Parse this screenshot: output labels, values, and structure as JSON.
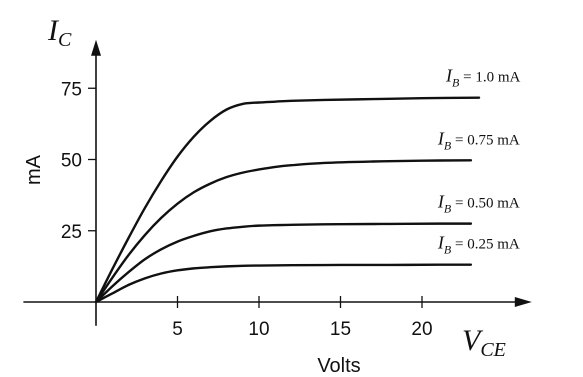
{
  "chart_data": {
    "type": "line",
    "y_title": {
      "main": "I",
      "sub": "C"
    },
    "x_title": {
      "main": "V",
      "sub": "CE"
    },
    "ylabel": "mA",
    "xlabel": "Volts",
    "xlim": [
      -2,
      26
    ],
    "ylim": [
      -2,
      92
    ],
    "x_ticks": [
      5,
      10,
      15,
      20
    ],
    "y_ticks": [
      25,
      50,
      75
    ],
    "grid": false,
    "series": [
      {
        "name": "I_B = 1.0 mA",
        "label": {
          "prefix": "I",
          "sub": "B",
          "value": " = 1.0 mA"
        },
        "x": [
          0,
          1,
          2,
          3,
          4,
          5,
          6,
          7,
          8,
          9,
          10,
          11,
          12,
          14,
          17,
          20,
          23.5
        ],
        "y": [
          0,
          11.5,
          22.5,
          33,
          42.5,
          51,
          58,
          63.5,
          67.5,
          69.5,
          70,
          70.3,
          70.6,
          70.9,
          71.2,
          71.5,
          71.7
        ]
      },
      {
        "name": "I_B = 0.75 mA",
        "label": {
          "prefix": "I",
          "sub": "B",
          "value": " = 0.75 mA"
        },
        "x": [
          0,
          1,
          2,
          3,
          4,
          5,
          6,
          7,
          8,
          9,
          10,
          11,
          12,
          14,
          17,
          20,
          23
        ],
        "y": [
          0,
          8.5,
          16.5,
          23.5,
          29.5,
          34.5,
          38.5,
          41.5,
          43.8,
          45.4,
          46.5,
          47.4,
          48,
          48.8,
          49.3,
          49.6,
          49.7
        ]
      },
      {
        "name": "I_B = 0.50 mA",
        "label": {
          "prefix": "I",
          "sub": "B",
          "value": " = 0.50 mA"
        },
        "x": [
          0,
          1,
          2,
          3,
          4,
          5,
          6,
          7,
          8,
          9,
          10,
          12,
          15,
          18,
          21,
          23
        ],
        "y": [
          0,
          5.5,
          10.5,
          15,
          18.5,
          21.2,
          23.2,
          24.8,
          25.8,
          26.4,
          26.8,
          27.1,
          27.3,
          27.4,
          27.5,
          27.5
        ]
      },
      {
        "name": "I_B = 0.25 mA",
        "label": {
          "prefix": "I",
          "sub": "B",
          "value": " = 0.25 mA"
        },
        "x": [
          0,
          1,
          2,
          3,
          4,
          5,
          6,
          7,
          8,
          9,
          10,
          12,
          15,
          18,
          21,
          23
        ],
        "y": [
          0,
          3,
          6,
          8.3,
          10,
          11.1,
          11.8,
          12.2,
          12.5,
          12.7,
          12.8,
          12.9,
          13,
          13,
          13.1,
          13.1
        ]
      }
    ]
  }
}
